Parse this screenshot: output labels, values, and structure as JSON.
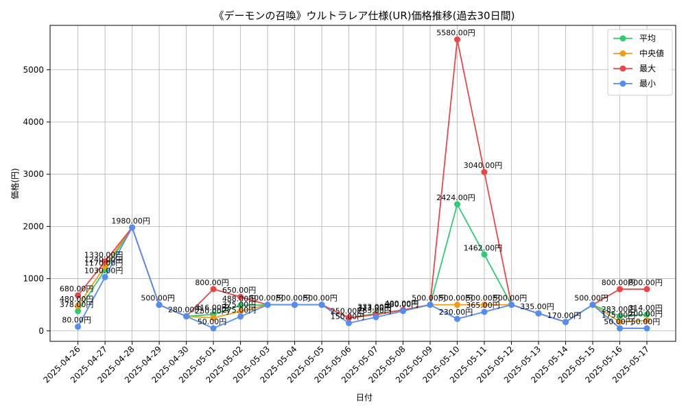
{
  "chart_data": {
    "type": "line",
    "title": "《デーモンの召喚》ウルトラレア仕様(UR)価格推移(過去30日間)",
    "xlabel": "日付",
    "ylabel": "価格(円)",
    "categories": [
      "2025-04-26",
      "2025-04-27",
      "2025-04-28",
      "2025-04-29",
      "2025-04-30",
      "2025-05-01",
      "2025-05-02",
      "2025-05-03",
      "2025-05-04",
      "2025-05-05",
      "2025-05-06",
      "2025-05-07",
      "2025-05-08",
      "2025-05-09",
      "2025-05-10",
      "2025-05-11",
      "2025-05-12",
      "2025-05-13",
      "2025-05-14",
      "2025-05-15",
      "2025-05-16",
      "2025-05-17"
    ],
    "ylim": [
      -200,
      5850
    ],
    "yticks": [
      0,
      1000,
      2000,
      3000,
      4000,
      5000
    ],
    "grid": true,
    "legend_position": "top-right",
    "series": [
      {
        "name": "平均",
        "color": "#2ecc71",
        "values": [
          378,
          1170,
          1980,
          500,
          280,
          316,
          488,
          500,
          500,
          500,
          250,
          333,
          400,
          500,
          2424,
          1462,
          500,
          335,
          170,
          500,
          283,
          314
        ]
      },
      {
        "name": "中央値",
        "color": "#f39c12",
        "values": [
          480,
          1240,
          1980,
          500,
          280,
          250,
          375,
          500,
          500,
          500,
          250,
          313,
          400,
          500,
          500,
          500,
          500,
          335,
          170,
          500,
          175,
          200
        ]
      },
      {
        "name": "最大",
        "color": "#ef4444",
        "values": [
          680,
          1330,
          1980,
          500,
          280,
          800,
          650,
          500,
          500,
          500,
          250,
          313,
          400,
          500,
          5580,
          3040,
          500,
          335,
          170,
          500,
          800,
          800
        ]
      },
      {
        "name": "最小",
        "color": "#4f8ef7",
        "values": [
          80,
          1030,
          1980,
          500,
          280,
          50,
          275,
          500,
          500,
          500,
          150,
          263,
          380,
          500,
          230,
          365,
          500,
          335,
          170,
          500,
          50,
          50
        ]
      }
    ],
    "data_labels": [
      {
        "x": "2025-04-26",
        "value": 680
      },
      {
        "x": "2025-04-26",
        "value": 480
      },
      {
        "x": "2025-04-26",
        "value": 378
      },
      {
        "x": "2025-04-26",
        "value": 80
      },
      {
        "x": "2025-04-27",
        "value": 1330
      },
      {
        "x": "2025-04-27",
        "value": 1240
      },
      {
        "x": "2025-04-27",
        "value": 1170
      },
      {
        "x": "2025-04-27",
        "value": 1030
      },
      {
        "x": "2025-04-28",
        "value": 1980
      },
      {
        "x": "2025-04-29",
        "value": 500
      },
      {
        "x": "2025-04-30",
        "value": 280
      },
      {
        "x": "2025-05-01",
        "value": 800
      },
      {
        "x": "2025-05-01",
        "value": 316
      },
      {
        "x": "2025-05-01",
        "value": 250
      },
      {
        "x": "2025-05-01",
        "value": 50
      },
      {
        "x": "2025-05-02",
        "value": 650
      },
      {
        "x": "2025-05-02",
        "value": 488
      },
      {
        "x": "2025-05-02",
        "value": 375
      },
      {
        "x": "2025-05-02",
        "value": 275
      },
      {
        "x": "2025-05-03",
        "value": 500
      },
      {
        "x": "2025-05-04",
        "value": 500
      },
      {
        "x": "2025-05-05",
        "value": 500
      },
      {
        "x": "2025-05-06",
        "value": 250
      },
      {
        "x": "2025-05-06",
        "value": 150
      },
      {
        "x": "2025-05-07",
        "value": 333
      },
      {
        "x": "2025-05-07",
        "value": 313
      },
      {
        "x": "2025-05-07",
        "value": 263
      },
      {
        "x": "2025-05-08",
        "value": 400
      },
      {
        "x": "2025-05-08",
        "value": 380
      },
      {
        "x": "2025-05-09",
        "value": 500
      },
      {
        "x": "2025-05-10",
        "value": 5580
      },
      {
        "x": "2025-05-10",
        "value": 2424
      },
      {
        "x": "2025-05-10",
        "value": 500
      },
      {
        "x": "2025-05-10",
        "value": 230
      },
      {
        "x": "2025-05-11",
        "value": 3040
      },
      {
        "x": "2025-05-11",
        "value": 1462
      },
      {
        "x": "2025-05-11",
        "value": 500
      },
      {
        "x": "2025-05-11",
        "value": 365
      },
      {
        "x": "2025-05-12",
        "value": 500
      },
      {
        "x": "2025-05-13",
        "value": 335
      },
      {
        "x": "2025-05-14",
        "value": 170
      },
      {
        "x": "2025-05-15",
        "value": 500
      },
      {
        "x": "2025-05-16",
        "value": 800
      },
      {
        "x": "2025-05-16",
        "value": 283
      },
      {
        "x": "2025-05-16",
        "value": 175
      },
      {
        "x": "2025-05-16",
        "value": 50
      },
      {
        "x": "2025-05-17",
        "value": 800
      },
      {
        "x": "2025-05-17",
        "value": 314
      },
      {
        "x": "2025-05-17",
        "value": 200
      },
      {
        "x": "2025-05-17",
        "value": 50
      }
    ],
    "label_suffix": "円"
  }
}
